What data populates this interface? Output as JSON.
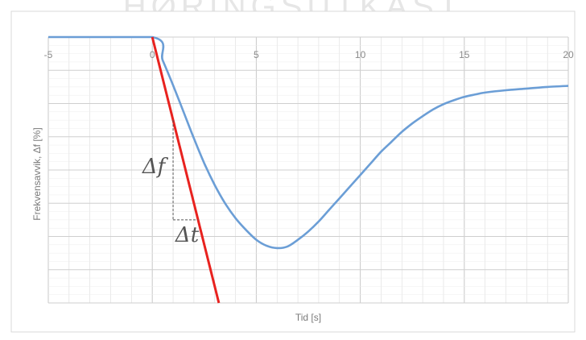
{
  "watermark": "HØRINGSUTKAST",
  "chart_data": {
    "type": "line",
    "xlabel": "Tid [s]",
    "ylabel": "Frekvensavvik, Δf [%]",
    "xlim": [
      -5,
      20
    ],
    "ylim": [
      -8,
      0
    ],
    "x_ticks": [
      -5,
      0,
      5,
      10,
      15,
      20
    ],
    "grid": true,
    "annotations": [
      "Δf",
      "Δt"
    ],
    "colors": {
      "frequency_curve": "#6b9ed6",
      "tangent": "#e8221f",
      "grid": "#dcdcdc",
      "helper": "#555555"
    },
    "series": [
      {
        "x": [
          -5,
          0,
          0.5,
          1,
          1.5,
          2,
          2.5,
          3,
          3.5,
          4,
          4.5,
          5,
          5.5,
          6,
          6.5,
          7,
          7.5,
          8,
          8.5,
          9,
          9.5,
          10,
          10.5,
          11,
          11.5,
          12,
          12.5,
          13,
          13.5,
          14,
          14.5,
          15,
          15.5,
          16,
          17,
          18,
          19,
          20
        ],
        "y": [
          0,
          0,
          -0.7,
          -1.45,
          -2.25,
          -3.05,
          -3.8,
          -4.45,
          -5.0,
          -5.45,
          -5.8,
          -6.1,
          -6.28,
          -6.35,
          -6.3,
          -6.1,
          -5.85,
          -5.55,
          -5.2,
          -4.85,
          -4.5,
          -4.15,
          -3.8,
          -3.45,
          -3.15,
          -2.85,
          -2.6,
          -2.38,
          -2.18,
          -2.02,
          -1.9,
          -1.8,
          -1.73,
          -1.67,
          -1.6,
          -1.55,
          -1.5,
          -1.47
        ]
      },
      {
        "x": [
          0,
          3.2
        ],
        "y": [
          0,
          -8
        ]
      }
    ],
    "delta_box": {
      "x0": 1.0,
      "x1": 2.2,
      "y0": -2.5,
      "y1": -5.5
    }
  }
}
